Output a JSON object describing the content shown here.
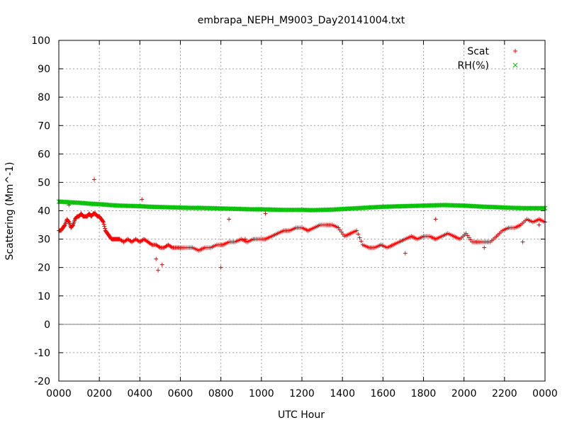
{
  "chart_data": {
    "type": "scatter",
    "title": "embrapa_NEPH_M9003_Day20141004.txt",
    "xlabel": "UTC Hour",
    "ylabel": "Scattering (Mm^-1)",
    "xlim": [
      0,
      24
    ],
    "ylim": [
      -20,
      100
    ],
    "x_tick_labels": [
      "0000",
      "0200",
      "0400",
      "0600",
      "0800",
      "1000",
      "1200",
      "1400",
      "1600",
      "1800",
      "2000",
      "2200",
      "0000"
    ],
    "y_ticks": [
      -20,
      -10,
      0,
      10,
      20,
      30,
      40,
      50,
      60,
      70,
      80,
      90,
      100
    ],
    "grid": true,
    "legend_position": "top-right",
    "series": [
      {
        "name": "Scat",
        "color": "#ff0000",
        "marker": "+",
        "x": [
          0.0,
          0.1,
          0.2,
          0.3,
          0.4,
          0.5,
          0.6,
          0.7,
          0.8,
          0.9,
          1.0,
          1.1,
          1.2,
          1.3,
          1.4,
          1.5,
          1.6,
          1.7,
          1.8,
          1.9,
          2.0,
          2.1,
          2.2,
          2.3,
          2.4,
          2.5,
          2.6,
          2.7,
          2.8,
          2.9,
          3.0,
          3.2,
          3.4,
          3.6,
          3.8,
          4.0,
          4.2,
          4.4,
          4.6,
          4.8,
          5.0,
          5.2,
          5.4,
          5.6,
          5.8,
          6.0,
          6.3,
          6.6,
          6.9,
          7.2,
          7.5,
          7.8,
          8.1,
          8.4,
          8.7,
          9.0,
          9.3,
          9.6,
          9.9,
          10.2,
          10.5,
          10.8,
          11.1,
          11.4,
          11.7,
          12.0,
          12.3,
          12.6,
          12.9,
          13.2,
          13.5,
          13.8,
          14.1,
          14.4,
          14.7,
          15.0,
          15.3,
          15.6,
          15.9,
          16.2,
          16.5,
          16.8,
          17.1,
          17.4,
          17.7,
          18.0,
          18.3,
          18.6,
          18.9,
          19.2,
          19.5,
          19.8,
          20.1,
          20.4,
          20.7,
          21.0,
          21.3,
          21.6,
          21.9,
          22.2,
          22.5,
          22.8,
          23.1,
          23.4,
          23.7,
          24.0,
          1.75,
          0.5,
          4.1,
          4.8,
          4.9,
          5.1,
          8.0,
          8.4,
          9.2,
          10.2,
          17.1,
          18.6,
          21.0,
          22.9,
          23.7
        ],
        "y": [
          33,
          33,
          34,
          35,
          37,
          36,
          34,
          35,
          37,
          38,
          38,
          39,
          38,
          38,
          38,
          39,
          38,
          39,
          39,
          38,
          38,
          37,
          36,
          33,
          32,
          31,
          30,
          30,
          30,
          30,
          30,
          29,
          30,
          29,
          30,
          29,
          30,
          29,
          28,
          28,
          27,
          27,
          28,
          27,
          27,
          27,
          27,
          27,
          26,
          27,
          27,
          28,
          28,
          29,
          29,
          30,
          29,
          30,
          30,
          30,
          31,
          32,
          33,
          33,
          34,
          34,
          33,
          34,
          35,
          35,
          35,
          34,
          31,
          32,
          33,
          28,
          27,
          27,
          28,
          27,
          28,
          29,
          30,
          31,
          30,
          31,
          31,
          30,
          31,
          32,
          31,
          30,
          32,
          29,
          29,
          29,
          29,
          31,
          33,
          34,
          34,
          35,
          37,
          36,
          37,
          36,
          51,
          42,
          44,
          23,
          19,
          21,
          20,
          37,
          30,
          39,
          25,
          37,
          27,
          29,
          35
        ],
        "y_marked": [
          33,
          33,
          34,
          35,
          37,
          36,
          34,
          35,
          37,
          38,
          38,
          39,
          38,
          38,
          38,
          39,
          38,
          39,
          39,
          38,
          38,
          37,
          36,
          33,
          32,
          31,
          30,
          30,
          30,
          30,
          30,
          29,
          30,
          29,
          30,
          29,
          30,
          29,
          28,
          28,
          27,
          27,
          28,
          27,
          27,
          27,
          27,
          27,
          26,
          27,
          27,
          28,
          28,
          29,
          29,
          30,
          29,
          30,
          30,
          30,
          31,
          32,
          33,
          33,
          34,
          34,
          33,
          34,
          35,
          35,
          35,
          34,
          31,
          32,
          33,
          28,
          27,
          27,
          28,
          27,
          28,
          29,
          30,
          31,
          30,
          31,
          31,
          30,
          31,
          32,
          31,
          30,
          32,
          29,
          29,
          29,
          29,
          31,
          33,
          34,
          34,
          35,
          37,
          36,
          37,
          36,
          51,
          42,
          44,
          23,
          19,
          21,
          20,
          37,
          30,
          39,
          25,
          37,
          27,
          29,
          35
        ]
      },
      {
        "name": "RH(%)",
        "color": "#00c000",
        "marker": "x",
        "x": [
          0,
          0.5,
          1,
          1.5,
          2,
          2.5,
          3,
          3.5,
          4,
          4.5,
          5,
          5.5,
          6,
          6.5,
          7,
          7.5,
          8,
          8.5,
          9,
          9.5,
          10,
          10.5,
          11,
          11.5,
          12,
          12.5,
          13,
          13.5,
          14,
          14.5,
          15,
          15.5,
          16,
          16.5,
          17,
          17.5,
          18,
          18.5,
          19,
          19.5,
          20,
          20.5,
          21,
          21.5,
          22,
          22.5,
          23,
          23.5,
          24
        ],
        "y": [
          43.2,
          43.0,
          42.8,
          42.5,
          42.3,
          42.0,
          41.8,
          41.7,
          41.6,
          41.4,
          41.3,
          41.2,
          41.1,
          41.0,
          41.0,
          40.9,
          40.8,
          40.7,
          40.6,
          40.5,
          40.5,
          40.4,
          40.3,
          40.3,
          40.3,
          40.2,
          40.3,
          40.4,
          40.6,
          40.8,
          41.0,
          41.2,
          41.4,
          41.5,
          41.6,
          41.7,
          41.8,
          41.9,
          42.0,
          41.9,
          41.8,
          41.6,
          41.4,
          41.3,
          41.1,
          41.0,
          40.9,
          40.9,
          40.9
        ]
      }
    ]
  }
}
